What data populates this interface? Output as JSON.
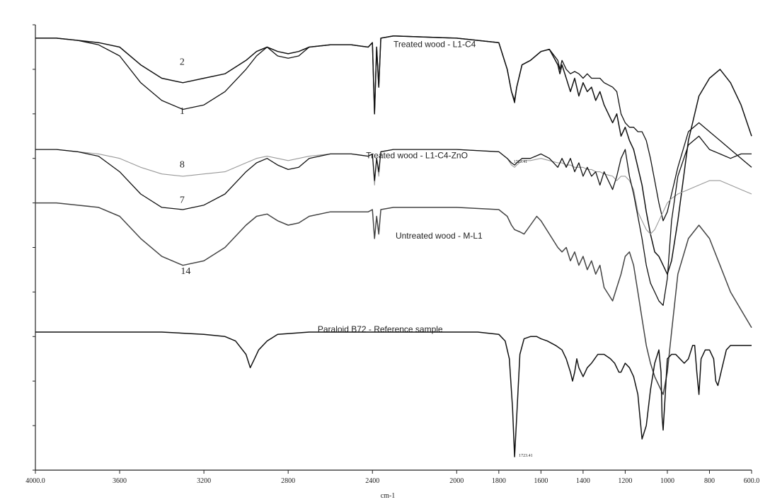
{
  "chart_data": {
    "type": "line",
    "title": "",
    "xlabel": "cm-1",
    "ylabel": "",
    "xlim": [
      4000,
      600
    ],
    "x_reversed": true,
    "grid": false,
    "x_ticks": [
      4000,
      3600,
      3200,
      2800,
      2400,
      2000,
      1800,
      1600,
      1400,
      1200,
      1000,
      800,
      600
    ],
    "x_tick_labels": [
      "4000.0",
      "3600",
      "3200",
      "2800",
      "2400",
      "2000",
      "1800",
      "1600",
      "1400",
      "1200",
      "1000",
      "800",
      "600.0"
    ],
    "annotations": [
      {
        "text": "Treated wood - L1-C4",
        "x": 2300,
        "y": 95
      },
      {
        "text": "Treated wood - L1-C4-ZnO",
        "x": 2430,
        "y": 70
      },
      {
        "text": "Untreated wood - M-L1",
        "x": 2290,
        "y": 52
      },
      {
        "text": "Paraloid B72 - Reference sample",
        "x": 2660,
        "y": 31
      },
      {
        "text": "1723.41",
        "x": 1730,
        "y": 69
      },
      {
        "text": "1723.41",
        "x": 1705,
        "y": 3
      },
      {
        "text": "2",
        "x": 3315,
        "y": 91
      },
      {
        "text": "1",
        "x": 3315,
        "y": 80
      },
      {
        "text": "8",
        "x": 3315,
        "y": 68
      },
      {
        "text": "7",
        "x": 3315,
        "y": 60
      },
      {
        "text": "14",
        "x": 3310,
        "y": 44
      }
    ],
    "series": [
      {
        "name": "Treated wood - L1-C4",
        "curves": [
          {
            "label": "2",
            "x": [
              4000,
              3900,
              3800,
              3700,
              3600,
              3500,
              3400,
              3300,
              3200,
              3100,
              3000,
              2950,
              2900,
              2850,
              2800,
              2750,
              2700,
              2600,
              2500,
              2420,
              2400,
              2390,
              2380,
              2370,
              2360,
              2300,
              2000,
              1800,
              1760,
              1740,
              1725,
              1715,
              1690,
              1650,
              1600,
              1560,
              1520,
              1510,
              1500,
              1480,
              1460,
              1440,
              1420,
              1400,
              1380,
              1360,
              1340,
              1320,
              1300,
              1260,
              1240,
              1220,
              1200,
              1180,
              1160,
              1140,
              1120,
              1100,
              1080,
              1060,
              1040,
              1020,
              1000,
              980,
              950,
              900,
              850,
              800,
              750,
              700,
              650,
              600
            ],
            "y": [
              97,
              97,
              96.5,
              96,
              95,
              91,
              88,
              87,
              88,
              89,
              92,
              94,
              95,
              94,
              93.5,
              94,
              95,
              95.5,
              95.5,
              95,
              96,
              80,
              95,
              86,
              97,
              97.5,
              97,
              96,
              90,
              85,
              83,
              86,
              91,
              92,
              94,
              94.5,
              91,
              89,
              91,
              88,
              85,
              88,
              84,
              87,
              85,
              86,
              83,
              85,
              82,
              78,
              80,
              75,
              77,
              74,
              72,
              68,
              64,
              58,
              53,
              49,
              48,
              46,
              44,
              47,
              56,
              74,
              84,
              88,
              90,
              87,
              82,
              75
            ]
          },
          {
            "label": "1",
            "x": [
              4000,
              3900,
              3800,
              3700,
              3600,
              3500,
              3400,
              3300,
              3200,
              3100,
              3000,
              2950,
              2900,
              2850,
              2800,
              2750,
              2700,
              2600,
              2500,
              2420,
              2400,
              2390,
              2380,
              2370,
              2360,
              2300,
              2000,
              1800,
              1760,
              1740,
              1725,
              1715,
              1690,
              1650,
              1600,
              1560,
              1520,
              1510,
              1500,
              1480,
              1460,
              1440,
              1420,
              1400,
              1380,
              1360,
              1340,
              1320,
              1300,
              1260,
              1240,
              1220,
              1200,
              1180,
              1160,
              1140,
              1120,
              1100,
              1080,
              1060,
              1040,
              1020,
              1000,
              980,
              950,
              900,
              850,
              800,
              750,
              700,
              650,
              600
            ],
            "y": [
              97,
              97,
              96.5,
              95.5,
              93,
              87,
              83,
              81,
              82,
              85,
              90,
              93,
              95,
              93,
              92.5,
              93,
              95,
              95.5,
              95.5,
              95,
              96,
              80,
              95,
              86,
              97,
              97.5,
              97,
              96,
              90,
              85,
              82.5,
              86,
              91,
              92,
              94,
              94.5,
              92,
              90,
              92,
              90,
              89,
              89.5,
              89,
              88,
              89,
              88,
              88,
              88,
              87,
              86,
              85,
              80,
              78,
              77,
              77,
              76,
              76,
              74,
              70,
              65,
              60,
              56,
              58,
              62,
              68,
              76,
              78,
              76,
              74,
              72,
              70,
              68
            ]
          }
        ]
      },
      {
        "name": "Treated wood - L1-C4-ZnO",
        "curves": [
          {
            "label": "8",
            "x": [
              4000,
              3900,
              3800,
              3700,
              3600,
              3500,
              3400,
              3300,
              3200,
              3100,
              3000,
              2950,
              2900,
              2850,
              2800,
              2750,
              2700,
              2600,
              2500,
              2420,
              2400,
              2390,
              2380,
              2370,
              2360,
              2300,
              2000,
              1800,
              1760,
              1740,
              1725,
              1715,
              1690,
              1650,
              1600,
              1560,
              1520,
              1500,
              1480,
              1460,
              1440,
              1420,
              1400,
              1380,
              1360,
              1340,
              1320,
              1300,
              1260,
              1240,
              1220,
              1200,
              1180,
              1160,
              1140,
              1120,
              1100,
              1080,
              1060,
              1040,
              1020,
              1000,
              980,
              950,
              900,
              850,
              800,
              750,
              700,
              650,
              600
            ],
            "y": [
              72,
              72,
              71.5,
              71,
              70,
              68,
              66.5,
              66,
              66.5,
              67,
              69,
              70,
              70.5,
              70,
              69.5,
              70,
              70.5,
              71,
              71,
              70.5,
              71,
              64,
              70,
              66,
              71.5,
              72,
              72,
              71.5,
              70,
              68.5,
              68,
              68.5,
              69.5,
              69.5,
              70,
              69.5,
              69,
              69,
              68.5,
              68.5,
              68,
              68,
              68,
              67.5,
              67.5,
              67,
              67,
              66.5,
              66,
              65,
              66,
              66,
              65,
              63,
              58,
              56,
              54,
              53,
              54,
              56,
              58,
              60,
              61,
              62,
              63,
              64,
              65,
              65,
              64,
              63,
              62
            ]
          },
          {
            "label": "7",
            "x": [
              4000,
              3900,
              3800,
              3700,
              3600,
              3500,
              3400,
              3300,
              3200,
              3100,
              3000,
              2950,
              2900,
              2850,
              2800,
              2750,
              2700,
              2600,
              2500,
              2420,
              2400,
              2390,
              2380,
              2370,
              2360,
              2300,
              2000,
              1800,
              1760,
              1740,
              1725,
              1715,
              1690,
              1650,
              1600,
              1560,
              1520,
              1500,
              1480,
              1460,
              1440,
              1420,
              1400,
              1380,
              1360,
              1340,
              1320,
              1300,
              1260,
              1240,
              1220,
              1200,
              1180,
              1160,
              1140,
              1120,
              1100,
              1080,
              1060,
              1040,
              1020,
              1000,
              980,
              950,
              900,
              850,
              800,
              750,
              700,
              650,
              600
            ],
            "y": [
              72,
              72,
              71.5,
              70.5,
              67,
              62,
              59,
              58.5,
              59.5,
              62,
              67,
              69,
              70,
              68.5,
              67.5,
              68,
              70,
              71,
              71,
              70.5,
              71,
              65,
              70,
              67,
              71.5,
              72,
              72,
              71.5,
              70,
              69,
              68.5,
              69,
              70,
              70,
              71,
              70,
              68,
              70,
              68,
              70,
              67,
              69,
              66,
              68,
              66,
              67,
              64,
              67,
              63,
              66,
              70,
              72,
              66,
              62,
              57,
              52,
              46,
              42,
              40,
              38,
              37,
              43,
              56,
              66,
              73,
              75,
              72,
              71,
              70,
              71,
              71
            ]
          }
        ]
      },
      {
        "name": "Untreated wood - M-L1",
        "curves": [
          {
            "label": "14",
            "x": [
              4000,
              3900,
              3800,
              3700,
              3600,
              3500,
              3400,
              3300,
              3200,
              3100,
              3000,
              2950,
              2900,
              2850,
              2800,
              2750,
              2700,
              2600,
              2500,
              2420,
              2400,
              2390,
              2380,
              2370,
              2360,
              2300,
              2000,
              1800,
              1760,
              1740,
              1725,
              1700,
              1680,
              1650,
              1620,
              1600,
              1560,
              1520,
              1500,
              1480,
              1460,
              1440,
              1420,
              1400,
              1380,
              1360,
              1340,
              1320,
              1300,
              1260,
              1240,
              1220,
              1200,
              1180,
              1160,
              1140,
              1120,
              1100,
              1080,
              1060,
              1040,
              1020,
              1000,
              980,
              950,
              900,
              850,
              800,
              750,
              700,
              650,
              600
            ],
            "y": [
              60,
              60,
              59.5,
              59,
              57,
              52,
              48,
              46,
              47,
              50,
              55,
              57,
              57.5,
              56,
              55,
              55.5,
              57,
              58,
              58,
              58,
              58.5,
              52,
              57,
              53,
              58.5,
              59,
              59,
              58.5,
              57,
              55,
              54,
              53.5,
              53,
              55,
              57,
              56,
              53,
              50,
              49,
              50,
              47,
              49,
              46,
              48,
              45,
              47,
              44,
              46,
              41,
              38,
              41,
              44,
              48,
              49,
              46,
              40,
              34,
              28,
              24,
              21,
              19,
              17,
              22,
              31,
              44,
              52,
              55,
              52,
              46,
              40,
              36,
              32
            ]
          }
        ]
      },
      {
        "name": "Paraloid B72 - Reference sample",
        "curves": [
          {
            "label": "",
            "x": [
              4000,
              3800,
              3600,
              3400,
              3200,
              3100,
              3050,
              3000,
              2980,
              2960,
              2940,
              2900,
              2850,
              2700,
              2500,
              2300,
              2100,
              1900,
              1800,
              1770,
              1750,
              1735,
              1725,
              1715,
              1700,
              1680,
              1650,
              1620,
              1600,
              1570,
              1530,
              1500,
              1480,
              1460,
              1450,
              1440,
              1430,
              1420,
              1400,
              1390,
              1380,
              1360,
              1330,
              1300,
              1270,
              1250,
              1240,
              1230,
              1220,
              1210,
              1200,
              1180,
              1160,
              1140,
              1130,
              1120,
              1100,
              1080,
              1060,
              1040,
              1030,
              1025,
              1020,
              1010,
              1000,
              980,
              960,
              940,
              920,
              900,
              880,
              870,
              860,
              850,
              840,
              820,
              800,
              780,
              770,
              760,
              740,
              720,
              700,
              680,
              650,
              620,
              600
            ],
            "y": [
              31,
              31,
              31,
              31,
              30.5,
              30,
              29,
              26,
              23,
              25,
              27,
              29,
              30.5,
              31,
              31,
              31,
              31,
              31,
              30.5,
              29,
              25,
              14,
              3,
              12,
              26,
              29.5,
              30,
              30,
              29.5,
              29,
              28,
              27,
              25,
              22,
              20,
              22,
              25,
              23,
              21,
              22,
              23,
              24,
              26,
              26,
              25,
              24,
              23,
              22,
              22,
              23,
              24,
              23,
              21,
              17,
              12,
              7,
              10,
              18,
              24,
              27,
              22,
              12,
              9,
              17,
              25,
              26,
              26,
              25,
              24,
              25,
              28,
              28,
              22,
              17,
              25,
              27,
              27,
              25,
              20,
              19,
              23,
              27,
              28,
              28,
              28,
              28,
              28
            ]
          }
        ]
      }
    ]
  }
}
